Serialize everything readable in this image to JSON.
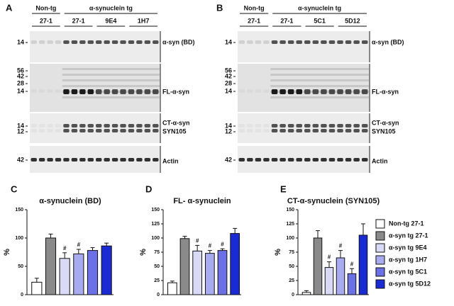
{
  "blots": [
    {
      "letter": "A",
      "groups": [
        "Non-tg",
        "α-synuclein tg"
      ],
      "antibodies": [
        "27-1",
        "27-1",
        "9E4",
        "1H7"
      ],
      "rows": [
        {
          "labels": [
            "α-syn (BD)"
          ],
          "markers": [
            "14"
          ]
        },
        {
          "labels": [
            "FL-α-syn"
          ],
          "markers": [
            "56",
            "42",
            "28",
            "14"
          ]
        },
        {
          "labels": [
            "CT-α-syn",
            "SYN105"
          ],
          "markers": [
            "14",
            "12"
          ]
        },
        {
          "labels": [
            "Actin"
          ],
          "markers": [
            "42"
          ]
        }
      ]
    },
    {
      "letter": "B",
      "groups": [
        "Non-tg",
        "α-synuclein tg"
      ],
      "antibodies": [
        "27-1",
        "27-1",
        "5C1",
        "5D12"
      ],
      "rows": [
        {
          "labels": [
            "α-syn (BD)"
          ],
          "markers": [
            "14"
          ]
        },
        {
          "labels": [
            "FL-α-syn"
          ],
          "markers": [
            "56",
            "42",
            "28",
            "14"
          ]
        },
        {
          "labels": [
            "CT-α-syn",
            "SYN105"
          ],
          "markers": [
            "14",
            "12"
          ]
        },
        {
          "labels": [
            "Actin"
          ],
          "markers": [
            "42"
          ]
        }
      ]
    }
  ],
  "legend": [
    {
      "name": "Non-tg 27-1",
      "color": "#ffffff"
    },
    {
      "name": "α-syn tg 27-1",
      "color": "#8a8a8a"
    },
    {
      "name": "α-syn tg 9E4",
      "color": "#d8daf6"
    },
    {
      "name": "α-syn tg 1H7",
      "color": "#a8abef"
    },
    {
      "name": "α-syn tg 5C1",
      "color": "#6c70e6"
    },
    {
      "name": "α-syn tg 5D12",
      "color": "#1b2bd4"
    }
  ],
  "chart_data": [
    {
      "type": "bar",
      "letter": "C",
      "title": "α-synuclein (BD)",
      "y_label": "%",
      "values": [
        22,
        100,
        64,
        72,
        78,
        86
      ],
      "errors": [
        7,
        7,
        10,
        8,
        5,
        5
      ],
      "annotations": [
        null,
        null,
        "#",
        "#",
        null,
        null
      ],
      "ylim": [
        0,
        150
      ],
      "yticks": [
        0,
        50,
        100,
        150
      ]
    },
    {
      "type": "bar",
      "letter": "D",
      "title": "FL- α-synuclein",
      "y_label": "%",
      "values": [
        21,
        99,
        77,
        73,
        78,
        108
      ],
      "errors": [
        3,
        4,
        10,
        5,
        3,
        9
      ],
      "annotations": [
        null,
        null,
        "#",
        "#",
        "#",
        null
      ],
      "ylim": [
        0,
        150
      ],
      "yticks": [
        0,
        25,
        50,
        75,
        100,
        125,
        150
      ]
    },
    {
      "type": "bar",
      "letter": "E",
      "title": "CT-α-synuclein (SYN105)",
      "y_label": "%",
      "values": [
        4,
        100,
        48,
        65,
        37,
        105
      ],
      "errors": [
        3,
        13,
        10,
        13,
        9,
        20
      ],
      "annotations": [
        null,
        null,
        "#",
        "#",
        "#",
        null
      ],
      "ylim": [
        0,
        150
      ],
      "yticks": [
        0,
        25,
        50,
        75,
        100,
        125,
        150
      ]
    }
  ]
}
